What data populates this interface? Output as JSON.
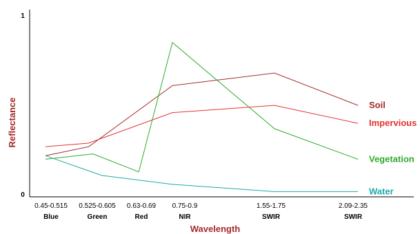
{
  "chart_data": {
    "type": "line",
    "xlabel": "Wavelength",
    "ylabel": "Reflectance",
    "ylim": [
      0,
      1
    ],
    "y_ticks": [
      "0",
      "1"
    ],
    "grid": false,
    "legend": "series labels at right end of lines",
    "categories": [
      "0.45-0.515",
      "0.525-0.605",
      "0.63-0.69",
      "0.75-0.9",
      "1.55-1.75",
      "2.09-2.35"
    ],
    "band_names": [
      "Blue",
      "Green",
      "Red",
      "NIR",
      "SWIR",
      "SWIR"
    ],
    "x": [
      0.4825,
      0.565,
      0.66,
      0.825,
      1.65,
      2.22
    ],
    "series": [
      {
        "name": "Soil",
        "color": "#a52a2a",
        "points": [
          [
            0.45,
            0.21
          ],
          [
            0.55,
            0.26
          ],
          [
            0.825,
            0.6
          ],
          [
            1.65,
            0.67
          ],
          [
            2.35,
            0.49
          ]
        ]
      },
      {
        "name": "Impervious",
        "color": "#e83030",
        "points": [
          [
            0.45,
            0.26
          ],
          [
            0.55,
            0.28
          ],
          [
            0.825,
            0.45
          ],
          [
            1.65,
            0.49
          ],
          [
            2.35,
            0.39
          ]
        ]
      },
      {
        "name": "Vegetation",
        "color": "#2eaa2e",
        "points": [
          [
            0.45,
            0.19
          ],
          [
            0.56,
            0.22
          ],
          [
            0.67,
            0.12
          ],
          [
            0.825,
            0.84
          ],
          [
            1.65,
            0.36
          ],
          [
            2.35,
            0.19
          ]
        ]
      },
      {
        "name": "Water",
        "color": "#1fa8a8",
        "points": [
          [
            0.45,
            0.21
          ],
          [
            0.58,
            0.1
          ],
          [
            0.825,
            0.05
          ],
          [
            1.65,
            0.01
          ],
          [
            2.35,
            0.01
          ]
        ]
      }
    ]
  }
}
